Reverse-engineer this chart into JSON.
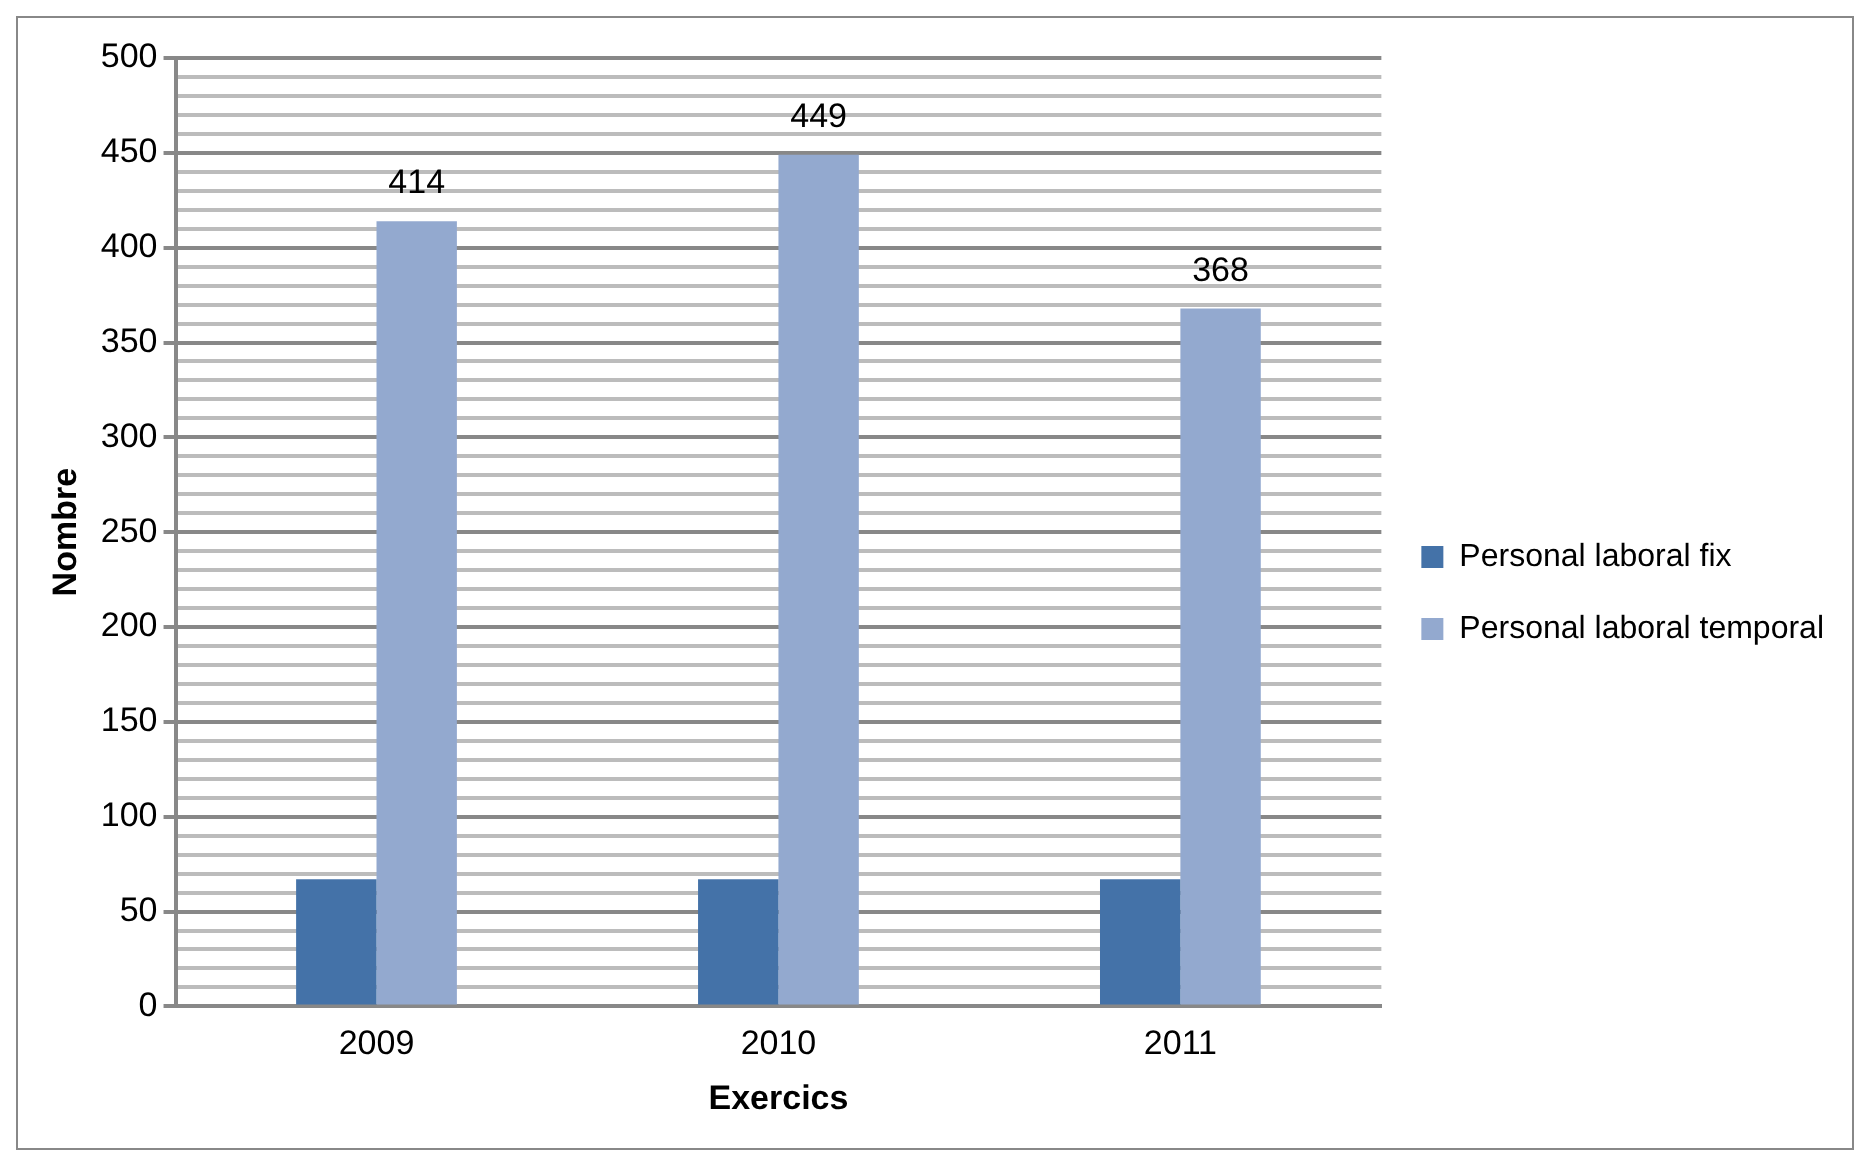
{
  "chart_data": {
    "type": "bar",
    "xlabel": "Exercics",
    "ylabel": "Nombre",
    "categories": [
      "2009",
      "2010",
      "2011"
    ],
    "series": [
      {
        "name": "Personal laboral fix",
        "color": "#4472a8",
        "values": [
          67,
          67,
          67
        ]
      },
      {
        "name": "Personal laboral temporal",
        "color": "#93a9cf",
        "values": [
          414,
          449,
          368
        ],
        "value_labels": [
          "414",
          "449",
          "368"
        ]
      }
    ],
    "ylim": [
      0,
      500
    ],
    "yticks": [
      0,
      {
        "value": 10,
        "label": null
      },
      {
        "value": 20,
        "label": null
      },
      {
        "value": 30,
        "label": null
      },
      {
        "value": 40,
        "label": null
      },
      50,
      {
        "value": 60,
        "label": null
      },
      {
        "value": 70,
        "label": null
      },
      {
        "value": 80,
        "label": null
      },
      {
        "value": 90,
        "label": null
      },
      100,
      {
        "value": 110,
        "label": null
      },
      {
        "value": 120,
        "label": null
      },
      {
        "value": 130,
        "label": null
      },
      {
        "value": 140,
        "label": null
      },
      150,
      {
        "value": 160,
        "label": null
      },
      {
        "value": 170,
        "label": null
      },
      {
        "value": 180,
        "label": null
      },
      {
        "value": 190,
        "label": null
      },
      200,
      {
        "value": 210,
        "label": null
      },
      {
        "value": 220,
        "label": null
      },
      {
        "value": 230,
        "label": null
      },
      {
        "value": 240,
        "label": null
      },
      250,
      {
        "value": 260,
        "label": null
      },
      {
        "value": 270,
        "label": null
      },
      {
        "value": 280,
        "label": null
      },
      {
        "value": 290,
        "label": null
      },
      300,
      {
        "value": 310,
        "label": null
      },
      {
        "value": 320,
        "label": null
      },
      {
        "value": 330,
        "label": null
      },
      {
        "value": 340,
        "label": null
      },
      350,
      {
        "value": 360,
        "label": null
      },
      {
        "value": 370,
        "label": null
      },
      {
        "value": 380,
        "label": null
      },
      {
        "value": 390,
        "label": null
      },
      400,
      {
        "value": 410,
        "label": null
      },
      {
        "value": 420,
        "label": null
      },
      {
        "value": 430,
        "label": null
      },
      {
        "value": 440,
        "label": null
      },
      450,
      {
        "value": 460,
        "label": null
      },
      {
        "value": 470,
        "label": null
      },
      {
        "value": 480,
        "label": null
      },
      {
        "value": 490,
        "label": null
      },
      500
    ],
    "grid": "y",
    "legend": "right"
  }
}
